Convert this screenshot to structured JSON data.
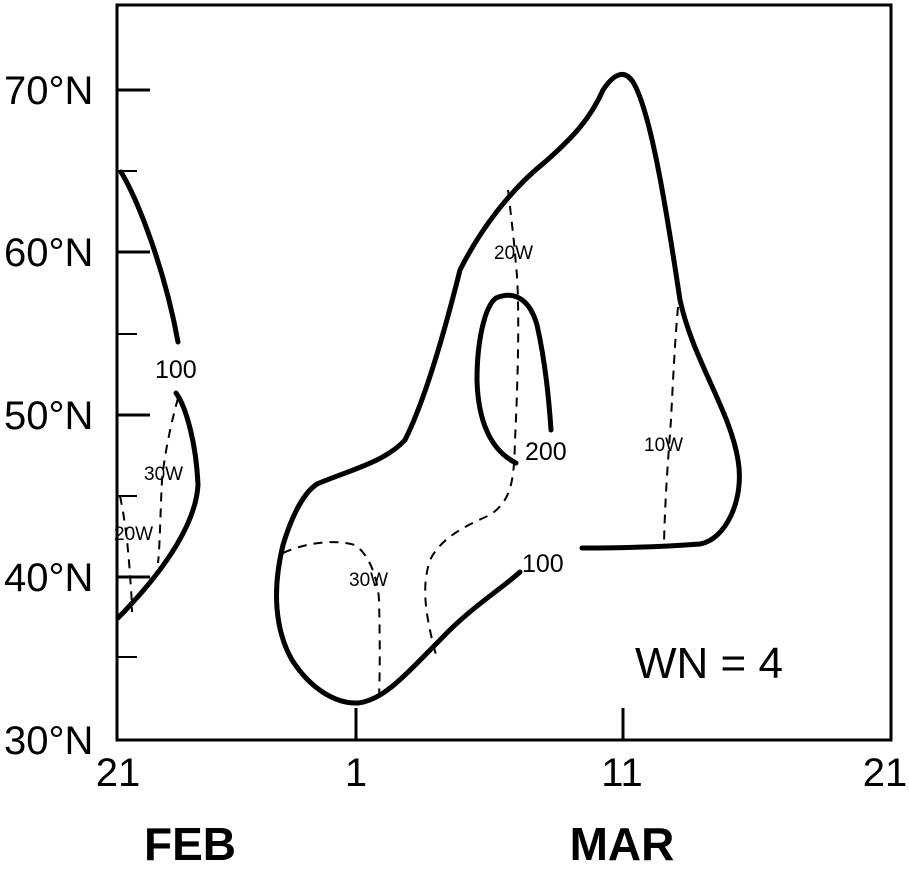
{
  "chart_data": {
    "type": "contour",
    "y_ticks": [
      "30°N",
      "40°N",
      "50°N",
      "60°N",
      "70°N"
    ],
    "x_ticks": [
      "21",
      "1",
      "11",
      "21"
    ],
    "x_months": [
      "FEB",
      "MAR"
    ],
    "ylim_deg": [
      30,
      75
    ],
    "xlim_days": [
      0,
      28
    ],
    "contour_labels": [
      "100",
      "200",
      "100"
    ],
    "longitude_labels": [
      "30W",
      "20W",
      "30W",
      "20W",
      "10W"
    ],
    "panel_label": "WN = 4"
  }
}
